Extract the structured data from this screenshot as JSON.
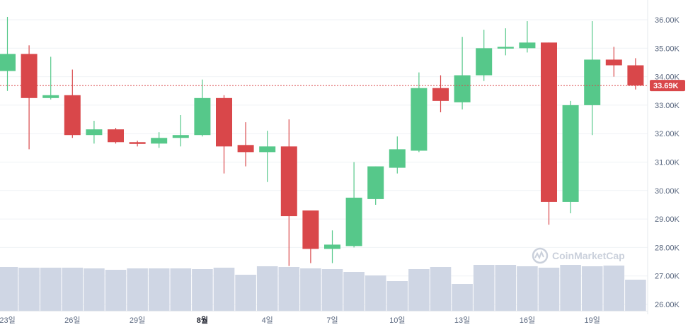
{
  "chart_data": {
    "type": "candlestick",
    "y_axis": {
      "ticks": [
        "26.00K",
        "27.00K",
        "28.00K",
        "29.00K",
        "30.00K",
        "31.00K",
        "32.00K",
        "33.00K",
        "34.00K",
        "35.00K",
        "36.00K"
      ],
      "min": 26000,
      "max": 36000
    },
    "x_axis": {
      "ticks": [
        {
          "label": "23일",
          "index": 0,
          "bold": false
        },
        {
          "label": "26일",
          "index": 3,
          "bold": false
        },
        {
          "label": "29일",
          "index": 6,
          "bold": false
        },
        {
          "label": "8월",
          "index": 9,
          "bold": true
        },
        {
          "label": "4일",
          "index": 12,
          "bold": false
        },
        {
          "label": "7일",
          "index": 15,
          "bold": false
        },
        {
          "label": "10일",
          "index": 18,
          "bold": false
        },
        {
          "label": "13일",
          "index": 21,
          "bold": false
        },
        {
          "label": "16일",
          "index": 24,
          "bold": false
        },
        {
          "label": "19일",
          "index": 27,
          "bold": false
        }
      ]
    },
    "candles": [
      {
        "o": 34200,
        "h": 36100,
        "l": 33500,
        "c": 34800,
        "v": 0.62
      },
      {
        "o": 34800,
        "h": 35100,
        "l": 31450,
        "c": 33250,
        "v": 0.61
      },
      {
        "o": 33250,
        "h": 34700,
        "l": 33200,
        "c": 33350,
        "v": 0.61
      },
      {
        "o": 33350,
        "h": 34250,
        "l": 31850,
        "c": 31950,
        "v": 0.61
      },
      {
        "o": 31950,
        "h": 32450,
        "l": 31650,
        "c": 32150,
        "v": 0.6
      },
      {
        "o": 32150,
        "h": 32200,
        "l": 31650,
        "c": 31700,
        "v": 0.58
      },
      {
        "o": 31700,
        "h": 31750,
        "l": 31550,
        "c": 31650,
        "v": 0.6
      },
      {
        "o": 31650,
        "h": 32050,
        "l": 31500,
        "c": 31850,
        "v": 0.6
      },
      {
        "o": 31850,
        "h": 32650,
        "l": 31550,
        "c": 31950,
        "v": 0.6
      },
      {
        "o": 31950,
        "h": 33900,
        "l": 31900,
        "c": 33250,
        "v": 0.59
      },
      {
        "o": 33250,
        "h": 33350,
        "l": 30600,
        "c": 31550,
        "v": 0.61
      },
      {
        "o": 31600,
        "h": 32400,
        "l": 30850,
        "c": 31350,
        "v": 0.51
      },
      {
        "o": 31350,
        "h": 32100,
        "l": 30300,
        "c": 31550,
        "v": 0.63
      },
      {
        "o": 31550,
        "h": 32500,
        "l": 27350,
        "c": 29100,
        "v": 0.62
      },
      {
        "o": 29300,
        "h": 29300,
        "l": 27450,
        "c": 27950,
        "v": 0.6
      },
      {
        "o": 27950,
        "h": 28600,
        "l": 27450,
        "c": 28100,
        "v": 0.59
      },
      {
        "o": 28050,
        "h": 31000,
        "l": 28000,
        "c": 29750,
        "v": 0.55
      },
      {
        "o": 29700,
        "h": 30850,
        "l": 29500,
        "c": 30850,
        "v": 0.5
      },
      {
        "o": 30800,
        "h": 31900,
        "l": 30600,
        "c": 31450,
        "v": 0.42
      },
      {
        "o": 31400,
        "h": 34150,
        "l": 31350,
        "c": 33600,
        "v": 0.59
      },
      {
        "o": 33600,
        "h": 34050,
        "l": 32750,
        "c": 33150,
        "v": 0.62
      },
      {
        "o": 33100,
        "h": 35400,
        "l": 32850,
        "c": 34050,
        "v": 0.38
      },
      {
        "o": 34050,
        "h": 35650,
        "l": 33850,
        "c": 35000,
        "v": 0.65
      },
      {
        "o": 35000,
        "h": 35700,
        "l": 34750,
        "c": 35050,
        "v": 0.65
      },
      {
        "o": 35000,
        "h": 35950,
        "l": 34850,
        "c": 35200,
        "v": 0.63
      },
      {
        "o": 35200,
        "h": 35200,
        "l": 28800,
        "c": 29600,
        "v": 0.61
      },
      {
        "o": 29600,
        "h": 33150,
        "l": 29200,
        "c": 33000,
        "v": 0.65
      },
      {
        "o": 33000,
        "h": 35950,
        "l": 31950,
        "c": 34600,
        "v": 0.63
      },
      {
        "o": 34600,
        "h": 35050,
        "l": 34000,
        "c": 34400,
        "v": 0.64
      },
      {
        "o": 34400,
        "h": 34650,
        "l": 33550,
        "c": 33690,
        "v": 0.44
      }
    ],
    "current_price": {
      "value": 33690,
      "label": "33.69K"
    },
    "colors": {
      "up": "#56c88a",
      "down": "#d9474a",
      "volume": "#cfd6e4",
      "price_line": "#d9474a",
      "grid": "#eff2f5",
      "text": "#58667e"
    },
    "watermark": {
      "text": "CoinMarketCap"
    }
  }
}
